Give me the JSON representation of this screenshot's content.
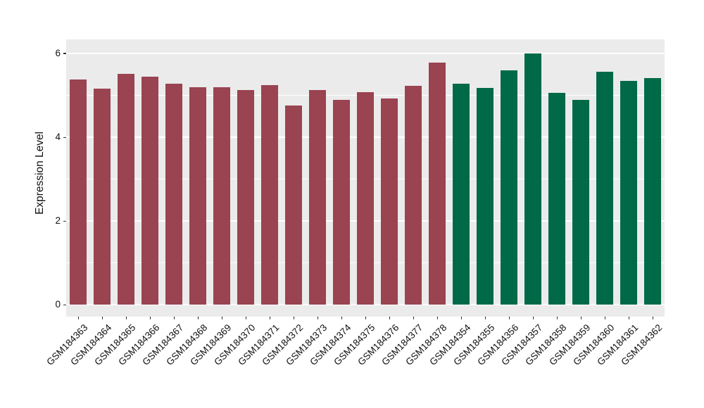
{
  "chart_data": {
    "type": "bar",
    "title": "",
    "xlabel": "",
    "ylabel": "Expression Level",
    "categories": [
      "GSM184363",
      "GSM184364",
      "GSM184365",
      "GSM184366",
      "GSM184367",
      "GSM184368",
      "GSM184369",
      "GSM184370",
      "GSM184371",
      "GSM184372",
      "GSM184373",
      "GSM184374",
      "GSM184375",
      "GSM184376",
      "GSM184377",
      "GSM184378",
      "GSM184354",
      "GSM184355",
      "GSM184356",
      "GSM184357",
      "GSM184358",
      "GSM184359",
      "GSM184360",
      "GSM184361",
      "GSM184362"
    ],
    "values": [
      5.38,
      5.16,
      5.52,
      5.44,
      5.28,
      5.2,
      5.19,
      5.12,
      5.24,
      4.75,
      5.13,
      4.89,
      5.07,
      4.92,
      5.22,
      5.79,
      5.28,
      5.17,
      5.6,
      6.0,
      5.06,
      4.9,
      5.57,
      5.35,
      5.42
    ],
    "bar_groups": [
      "red",
      "red",
      "red",
      "red",
      "red",
      "red",
      "red",
      "red",
      "red",
      "red",
      "red",
      "red",
      "red",
      "red",
      "red",
      "red",
      "green",
      "green",
      "green",
      "green",
      "green",
      "green",
      "green",
      "green",
      "green"
    ],
    "group_colors": {
      "red": "#9A4351",
      "green": "#006948"
    },
    "y_ticks": [
      0,
      2,
      4,
      6
    ],
    "y_minor_ticks": [
      1,
      3,
      5
    ],
    "ylim": [
      -0.28,
      6.34
    ],
    "grid": true,
    "legend": "none",
    "panel_bg": "#EBEBEB",
    "grid_color": "#FFFFFF",
    "axis_text_color": "#111111",
    "x_label_angle_deg": 45
  }
}
